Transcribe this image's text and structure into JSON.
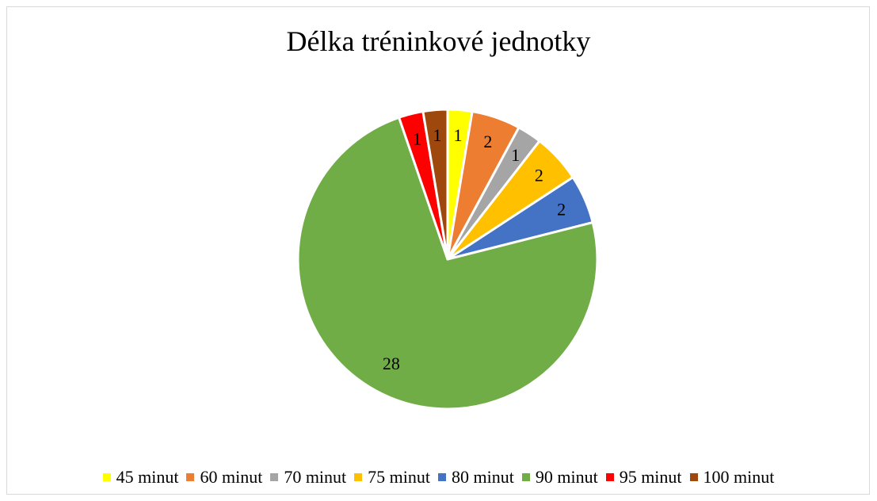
{
  "chart_data": {
    "type": "pie",
    "title": "Délka tréninkové jednotky",
    "categories": [
      "45 minut",
      "60 minut",
      "70 minut",
      "75 minut",
      "80 minut",
      "90 minut",
      "95 minut",
      "100 minut"
    ],
    "values": [
      1,
      2,
      1,
      2,
      2,
      28,
      1,
      1
    ],
    "colors": [
      "#ffff00",
      "#ed7d31",
      "#a5a5a5",
      "#ffc000",
      "#4472c4",
      "#70ad47",
      "#ff0000",
      "#9e480e"
    ],
    "data_labels": [
      "1",
      "2",
      "1",
      "2",
      "2",
      "28",
      "1",
      "1"
    ],
    "legend_position": "bottom",
    "start_angle_deg": 0,
    "direction": "clockwise"
  }
}
